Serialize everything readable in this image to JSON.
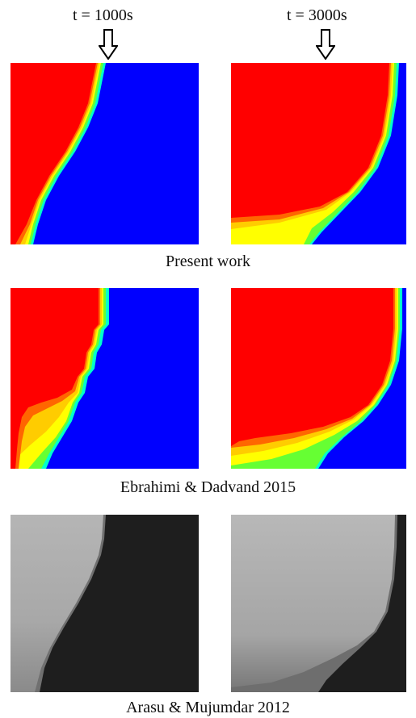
{
  "columns": [
    {
      "time_label": "t = 1000s"
    },
    {
      "time_label": "t = 3000s"
    }
  ],
  "rows": [
    {
      "caption": "Present work",
      "style": "color"
    },
    {
      "caption": "Ebrahimi & Dadvand 2015",
      "style": "color"
    },
    {
      "caption": "Arasu & Mujumdar 2012",
      "style": "grayscale"
    }
  ],
  "colors": {
    "melted": "#ff0000",
    "solid": "#0000ff",
    "gray_melted": "#b3b3b3",
    "gray_solid": "#1e1e1e",
    "transition": [
      "#ff6600",
      "#ffcc00",
      "#ffff00",
      "#66ff33",
      "#00ffcc"
    ]
  }
}
